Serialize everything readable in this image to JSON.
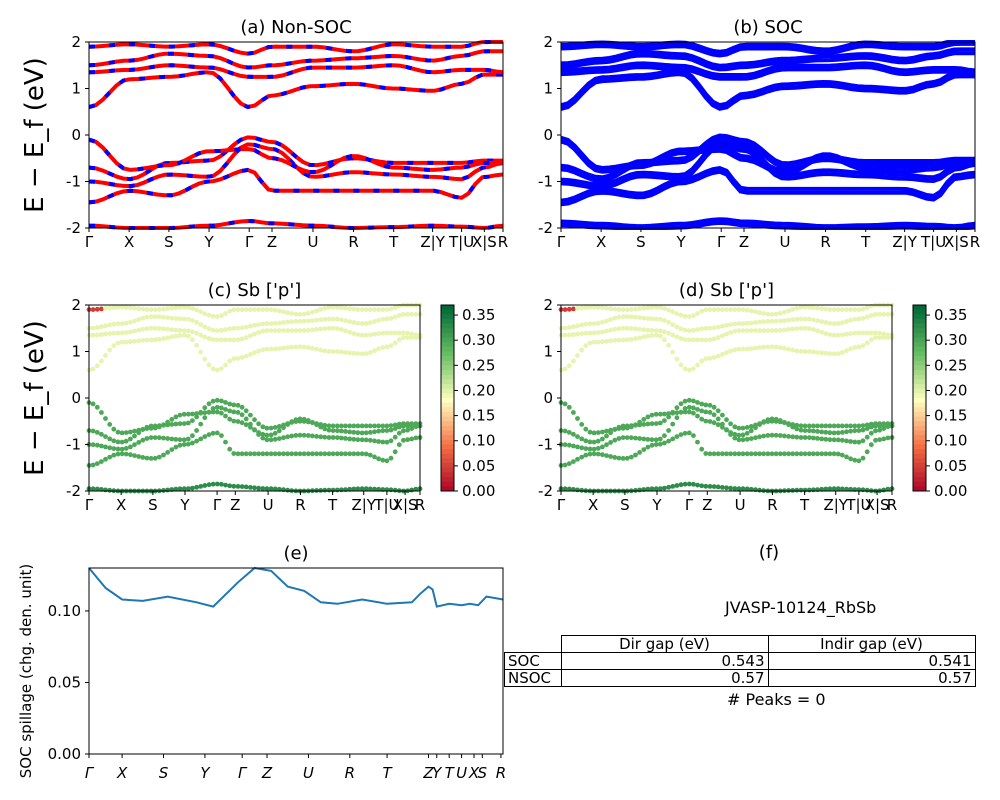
{
  "figure": {
    "panels": {
      "a": {
        "title": "(a) Non-SOC",
        "ylabel": "E − E_f (eV)"
      },
      "b": {
        "title": "(b) SOC"
      },
      "c": {
        "title": "(c)  Sb ['p']",
        "ylabel": "E − E_f (eV)"
      },
      "d": {
        "title": "(d) Sb ['p']"
      },
      "e": {
        "title": "(e)",
        "ylabel": "SOC spillage (chg. den. unit)"
      },
      "f": {
        "title": "(f)"
      }
    },
    "kpath_labels": [
      "Γ",
      "X",
      "S",
      "Y",
      "Γ",
      "Z",
      "U",
      "R",
      "T",
      "Z|Y",
      "T|U",
      "X|S",
      "R"
    ],
    "colors": {
      "non_soc_red": "#ff0000",
      "non_soc_blue": "#0000ff",
      "soc": "#0000ff",
      "spillage": "#1f77b4"
    },
    "colorbar_ticks": [
      "0.00",
      "0.05",
      "0.10",
      "0.15",
      "0.20",
      "0.25",
      "0.30",
      "0.35"
    ]
  },
  "table": {
    "material": "JVASP-10124_RbSb",
    "headers": [
      "",
      "Dir gap (eV)",
      "Indir gap (eV)"
    ],
    "rows": [
      {
        "label": "SOC",
        "dir": "0.543",
        "indir": "0.541"
      },
      {
        "label": "NSOC",
        "dir": "0.57",
        "indir": "0.57"
      }
    ],
    "peaks": "# Peaks = 0"
  },
  "chart_data": [
    {
      "type": "line",
      "title": "(a) Non-SOC",
      "ylabel": "E − E_f (eV)",
      "ylim": [
        -2,
        2
      ],
      "x_ticks": [
        "Γ",
        "X",
        "S",
        "Y",
        "Γ",
        "Z",
        "U",
        "R",
        "T",
        "Z|Y",
        "T|U",
        "X|S",
        "R"
      ],
      "y_ticks": [
        -2,
        -1,
        0,
        1,
        2
      ],
      "series_style": "red/blue dashed band lines",
      "bands_sampled_at_ticks": [
        [
          -1.95,
          -2.0,
          -2.0,
          -1.95,
          -1.85,
          -1.9,
          -1.95,
          -2.0,
          -1.98,
          -1.95,
          -1.97,
          -2.0,
          -1.95
        ],
        [
          -1.45,
          -1.2,
          -1.3,
          -1.0,
          -0.75,
          -1.2,
          -1.2,
          -1.2,
          -1.2,
          -1.2,
          -1.35,
          -0.9,
          -0.85
        ],
        [
          -1.0,
          -1.1,
          -0.85,
          -0.9,
          -0.2,
          -0.3,
          -0.9,
          -0.8,
          -0.85,
          -0.9,
          -0.95,
          -0.7,
          -0.6
        ],
        [
          -0.7,
          -0.95,
          -0.6,
          -0.55,
          -0.05,
          -0.15,
          -0.65,
          -0.5,
          -0.6,
          -0.6,
          -0.6,
          -0.55,
          -0.55
        ],
        [
          -0.1,
          -0.75,
          -0.65,
          -0.35,
          -0.3,
          -0.5,
          -0.8,
          -0.45,
          -0.7,
          -0.75,
          -0.7,
          -0.6,
          -0.6
        ],
        [
          0.6,
          1.2,
          1.25,
          1.35,
          0.6,
          0.85,
          1.05,
          1.1,
          1.0,
          0.95,
          1.1,
          1.3,
          1.3
        ],
        [
          1.35,
          1.4,
          1.5,
          1.45,
          1.25,
          1.25,
          1.45,
          1.45,
          1.5,
          1.35,
          1.4,
          1.4,
          1.35
        ],
        [
          1.5,
          1.6,
          1.75,
          1.7,
          1.45,
          1.5,
          1.6,
          1.65,
          1.7,
          1.6,
          1.7,
          1.8,
          1.8
        ],
        [
          1.9,
          1.95,
          1.9,
          1.95,
          1.75,
          1.9,
          1.9,
          1.8,
          1.95,
          1.9,
          1.9,
          2.0,
          2.0
        ]
      ]
    },
    {
      "type": "line",
      "title": "(b) SOC",
      "ylim": [
        -2,
        2
      ],
      "x_ticks": [
        "Γ",
        "X",
        "S",
        "Y",
        "Γ",
        "Z",
        "U",
        "R",
        "T",
        "Z|Y",
        "T|U",
        "X|S",
        "R"
      ],
      "y_ticks": [
        -2,
        -1,
        0,
        1,
        2
      ],
      "series_style": "thick blue band lines (spin-split pairs)",
      "bands_sampled_at_ticks": [
        [
          -1.9,
          -1.95,
          -2.0,
          -1.95,
          -1.85,
          -1.9,
          -1.95,
          -2.0,
          -1.98,
          -1.95,
          -1.97,
          -2.0,
          -1.95
        ],
        [
          -1.45,
          -1.2,
          -1.3,
          -1.0,
          -0.75,
          -1.2,
          -1.2,
          -1.2,
          -1.2,
          -1.2,
          -1.35,
          -0.9,
          -0.85
        ],
        [
          -1.0,
          -1.1,
          -0.85,
          -0.9,
          -0.2,
          -0.3,
          -0.9,
          -0.8,
          -0.85,
          -0.9,
          -0.95,
          -0.7,
          -0.6
        ],
        [
          -0.7,
          -0.95,
          -0.6,
          -0.55,
          -0.05,
          -0.15,
          -0.65,
          -0.5,
          -0.6,
          -0.6,
          -0.6,
          -0.55,
          -0.55
        ],
        [
          -0.1,
          -0.75,
          -0.65,
          -0.35,
          -0.3,
          -0.5,
          -0.8,
          -0.45,
          -0.7,
          -0.75,
          -0.7,
          -0.6,
          -0.6
        ],
        [
          0.6,
          1.2,
          1.25,
          1.35,
          0.6,
          0.85,
          1.05,
          1.1,
          1.0,
          0.95,
          1.1,
          1.3,
          1.3
        ],
        [
          1.35,
          1.4,
          1.5,
          1.45,
          1.25,
          1.25,
          1.45,
          1.45,
          1.5,
          1.35,
          1.4,
          1.4,
          1.35
        ],
        [
          1.5,
          1.6,
          1.75,
          1.7,
          1.45,
          1.5,
          1.6,
          1.65,
          1.7,
          1.6,
          1.7,
          1.8,
          1.8
        ],
        [
          1.9,
          1.95,
          1.9,
          1.95,
          1.75,
          1.9,
          1.9,
          1.8,
          1.95,
          1.9,
          1.9,
          2.0,
          2.0
        ]
      ]
    },
    {
      "type": "scatter",
      "title": "(c)  Sb ['p']",
      "ylabel": "E − E_f (eV)",
      "ylim": [
        -2,
        2
      ],
      "colorbar": {
        "cmap": "RdYlGn",
        "range": [
          0.0,
          0.37
        ]
      },
      "x_ticks": [
        "Γ",
        "X",
        "S",
        "Y",
        "Γ",
        "Z",
        "U",
        "R",
        "T",
        "Z|Y",
        "T|U",
        "X|S",
        "R"
      ],
      "weights_by_band": {
        "valence": 0.3,
        "conduction": 0.2,
        "near_gamma_top": 0.05
      }
    },
    {
      "type": "scatter",
      "title": "(d) Sb ['p']",
      "ylim": [
        -2,
        2
      ],
      "colorbar": {
        "cmap": "RdYlGn",
        "range": [
          0.0,
          0.37
        ]
      },
      "x_ticks": [
        "Γ",
        "X",
        "S",
        "Y",
        "Γ",
        "Z",
        "U",
        "R",
        "T",
        "Z|Y",
        "T|U",
        "X|S",
        "R"
      ],
      "weights_by_band": {
        "valence": 0.3,
        "conduction": 0.2,
        "near_gamma_top": 0.05
      }
    },
    {
      "type": "line",
      "title": "(e)",
      "ylabel": "SOC spillage (chg. den. unit)",
      "ylim": [
        0.0,
        0.13
      ],
      "y_ticks": [
        "0.00",
        "0.05",
        "0.10"
      ],
      "x_ticks": [
        "Γ",
        "X",
        "S",
        "Y",
        "Γ",
        "Z",
        "U",
        "R",
        "T",
        "Z",
        "Y",
        "T",
        "U",
        "X",
        "S",
        "R"
      ],
      "x": [
        0,
        0.04,
        0.08,
        0.13,
        0.19,
        0.26,
        0.3,
        0.36,
        0.4,
        0.44,
        0.48,
        0.52,
        0.56,
        0.6,
        0.66,
        0.72,
        0.78,
        0.8,
        0.82,
        0.83,
        0.84,
        0.87,
        0.9,
        0.92,
        0.94,
        0.96,
        0.98,
        1.0
      ],
      "y": [
        0.13,
        0.116,
        0.108,
        0.107,
        0.11,
        0.106,
        0.103,
        0.12,
        0.13,
        0.128,
        0.117,
        0.114,
        0.106,
        0.105,
        0.108,
        0.105,
        0.106,
        0.112,
        0.117,
        0.115,
        0.103,
        0.105,
        0.104,
        0.105,
        0.104,
        0.11,
        0.109,
        0.108
      ]
    }
  ]
}
